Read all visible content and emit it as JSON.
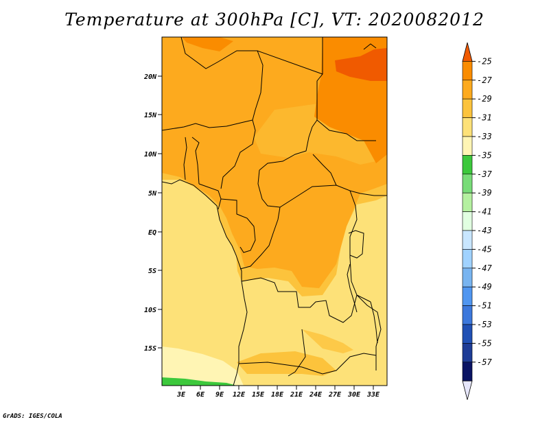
{
  "title": "Temperature at 300hPa [C], VT: 2020082012",
  "credit": "GrADS: IGES/COLA",
  "map": {
    "lat_labels": [
      "20N",
      "15N",
      "10N",
      "5N",
      "EQ",
      "5S",
      "10S",
      "15S"
    ],
    "lon_labels": [
      "3E",
      "6E",
      "9E",
      "12E",
      "15E",
      "18E",
      "21E",
      "24E",
      "27E",
      "30E",
      "33E"
    ]
  },
  "colorbar": {
    "labels": [
      "-25",
      "-27",
      "-29",
      "-31",
      "-33",
      "-35",
      "-37",
      "-39",
      "-41",
      "-43",
      "-45",
      "-47",
      "-49",
      "-51",
      "-53",
      "-55",
      "-57"
    ],
    "colors": [
      "#f05a00",
      "#fa8c00",
      "#fdaa1e",
      "#fcc33c",
      "#fde178",
      "#fff5b4",
      "#3cc83c",
      "#78dc78",
      "#b4f0a0",
      "#e1ffe1",
      "#c8e6ff",
      "#a0d2ff",
      "#78b4f0",
      "#5096f0",
      "#3c78dc",
      "#2050b4",
      "#1e3c96",
      "#0a1464",
      "#e6e6fa"
    ]
  }
}
